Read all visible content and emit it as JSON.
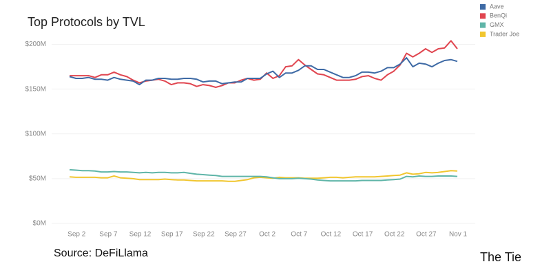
{
  "chart_data": {
    "type": "line",
    "title": "Top Protocols by TVL",
    "categories": [
      null,
      "Sep 2",
      null,
      null,
      null,
      null,
      "Sep 7",
      null,
      null,
      null,
      null,
      "Sep 12",
      null,
      null,
      null,
      null,
      "Sep 17",
      null,
      null,
      null,
      null,
      "Sep 22",
      null,
      null,
      null,
      null,
      "Sep 27",
      null,
      null,
      null,
      null,
      "Oct 2",
      null,
      null,
      null,
      null,
      "Oct 7",
      null,
      null,
      null,
      null,
      "Oct 12",
      null,
      null,
      null,
      null,
      "Oct 17",
      null,
      null,
      null,
      null,
      "Oct 22",
      null,
      null,
      null,
      null,
      "Oct 27",
      null,
      null,
      null,
      null,
      "Nov 1"
    ],
    "series": [
      {
        "name": "Aave",
        "color": "#3e6aa5",
        "values": [
          164,
          162,
          162,
          163,
          161,
          161,
          160,
          163,
          161,
          160,
          159,
          155,
          160,
          160,
          162,
          162,
          161,
          161,
          162,
          162,
          161,
          158,
          159,
          159,
          156,
          157,
          158,
          158,
          162,
          162,
          162,
          167,
          170,
          163,
          168,
          168,
          171,
          176,
          176,
          172,
          172,
          169,
          166,
          163,
          163,
          165,
          169,
          169,
          168,
          170,
          174,
          174,
          178,
          185,
          175,
          179,
          178,
          175,
          179,
          182,
          183,
          181
        ]
      },
      {
        "name": "BenQi",
        "color": "#e0454f",
        "values": [
          165,
          165,
          165,
          165,
          163,
          166,
          166,
          169,
          166,
          164,
          160,
          157,
          159,
          160,
          161,
          159,
          155,
          157,
          157,
          156,
          153,
          155,
          154,
          152,
          154,
          157,
          157,
          160,
          162,
          160,
          161,
          168,
          162,
          165,
          175,
          176,
          183,
          177,
          172,
          167,
          166,
          163,
          160,
          160,
          160,
          161,
          164,
          165,
          162,
          160,
          166,
          170,
          177,
          190,
          186,
          190,
          195,
          191,
          195,
          196,
          204,
          195
        ]
      },
      {
        "name": "GMX",
        "color": "#5fb5a8",
        "values": [
          60,
          59.5,
          59,
          59,
          58.5,
          57.5,
          57.5,
          58,
          57.5,
          57.5,
          57,
          56.5,
          57,
          56.5,
          57,
          57,
          56.5,
          56.5,
          57,
          56,
          55,
          54.5,
          54,
          53.5,
          52.5,
          52.5,
          52.5,
          52.5,
          52.5,
          52.5,
          52.5,
          52,
          51,
          50,
          50,
          50,
          50.5,
          50,
          49.5,
          48.5,
          48,
          47.5,
          47.5,
          47.5,
          47.5,
          47.5,
          48,
          48,
          48,
          48,
          48.5,
          49,
          49.5,
          52.5,
          52,
          53,
          52.5,
          52.5,
          53,
          53,
          53,
          52.5
        ]
      },
      {
        "name": "Trader Joe",
        "color": "#f1c62f",
        "values": [
          52,
          51.5,
          51.5,
          51.5,
          51.5,
          51,
          51,
          53,
          51,
          50.5,
          50,
          49,
          49,
          49,
          49,
          49.5,
          49,
          48.5,
          48.5,
          48,
          47.5,
          47.5,
          47.5,
          47.5,
          47.5,
          47,
          47,
          48,
          49,
          51,
          51.5,
          51,
          50.5,
          51.5,
          51,
          51,
          51,
          50.5,
          50.5,
          50.5,
          51,
          51.5,
          51.5,
          51,
          51.5,
          52,
          52,
          52,
          52,
          52.5,
          53,
          53.5,
          54,
          56.5,
          55,
          55.5,
          57,
          56.5,
          57,
          58,
          59,
          58.5
        ]
      }
    ],
    "ylim": [
      0,
      205
    ],
    "yticks": [
      {
        "value": 0,
        "label": "$0M"
      },
      {
        "value": 50,
        "label": "$50M"
      },
      {
        "value": 100,
        "label": "$100M"
      },
      {
        "value": 150,
        "label": "$150M"
      },
      {
        "value": 200,
        "label": "$200M"
      }
    ],
    "grid": true,
    "legend": "top-right",
    "source": "Source: DeFiLlama",
    "logo": "The Tie"
  }
}
